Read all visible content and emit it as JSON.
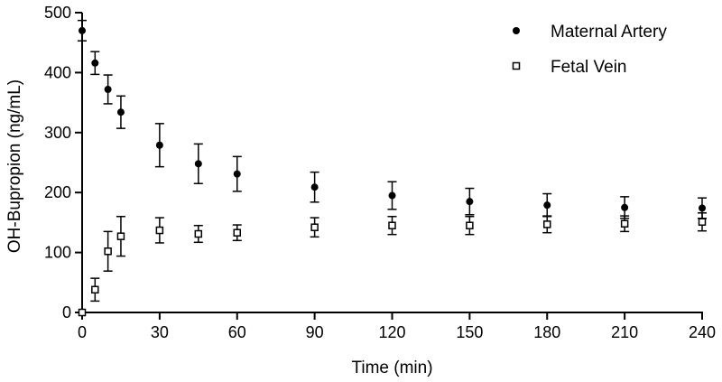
{
  "chart_data": {
    "type": "scatter",
    "title": "",
    "xlabel": "Time (min)",
    "ylabel": "OH-Bupropion (ng/mL)",
    "xlim": [
      0,
      240
    ],
    "ylim": [
      0,
      500
    ],
    "xticks": [
      0,
      30,
      60,
      90,
      120,
      150,
      180,
      210,
      240
    ],
    "yticks": [
      0,
      100,
      200,
      300,
      400,
      500
    ],
    "grid": false,
    "legend_position": "top-right",
    "series": [
      {
        "name": "Maternal Artery",
        "marker": "filled-circle",
        "color": "#000000",
        "x": [
          0,
          5,
          10,
          15,
          30,
          45,
          60,
          90,
          120,
          150,
          180,
          210,
          240
        ],
        "y": [
          470,
          416,
          372,
          334,
          279,
          248,
          231,
          209,
          195,
          185,
          179,
          175,
          174
        ],
        "error": [
          17,
          19,
          24,
          27,
          36,
          33,
          29,
          25,
          23,
          22,
          19,
          18,
          17
        ]
      },
      {
        "name": "Fetal Vein",
        "marker": "open-square",
        "color": "#000000",
        "x": [
          0,
          5,
          10,
          15,
          30,
          45,
          60,
          90,
          120,
          150,
          180,
          210,
          240
        ],
        "y": [
          0,
          38,
          102,
          127,
          137,
          131,
          133,
          142,
          145,
          145,
          147,
          148,
          151
        ],
        "error": [
          0,
          19,
          33,
          33,
          21,
          14,
          13,
          16,
          15,
          15,
          14,
          13,
          15
        ]
      }
    ]
  }
}
